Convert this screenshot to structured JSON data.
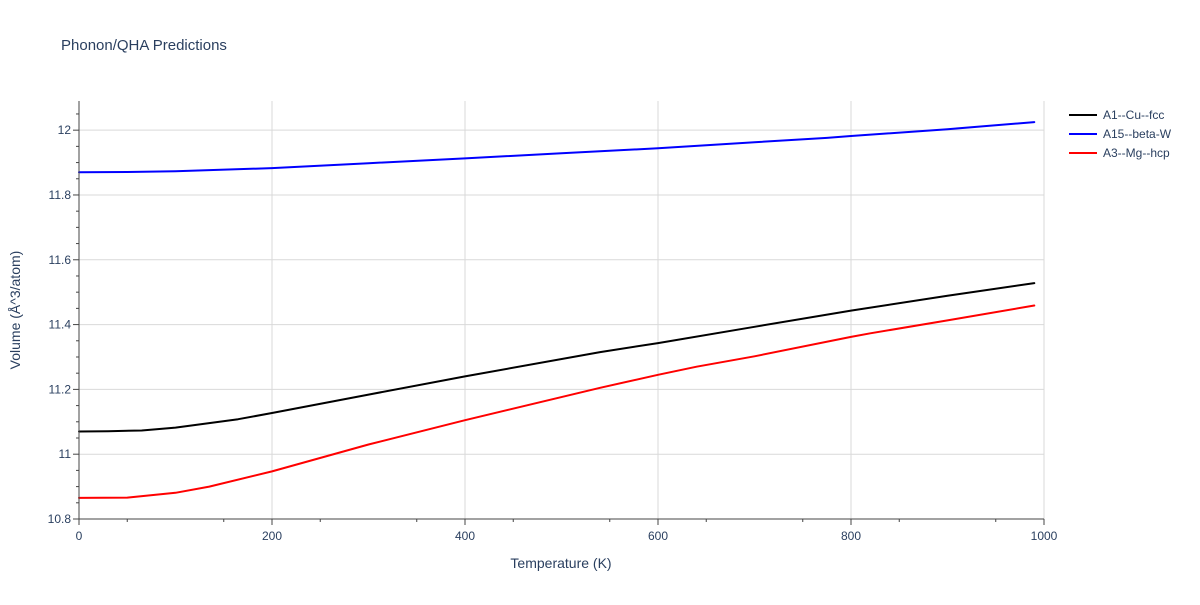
{
  "chart_data": {
    "type": "line",
    "title": "Phonon/QHA Predictions",
    "xlabel": "Temperature (K)",
    "ylabel": "Volume (Å^3/atom)",
    "xlim": [
      0,
      1000
    ],
    "ylim": [
      10.8,
      12.09
    ],
    "xticks": [
      0,
      200,
      400,
      600,
      800,
      1000
    ],
    "xtick_labels": [
      "0",
      "200",
      "400",
      "600",
      "800",
      "1000"
    ],
    "yticks": [
      10.8,
      11,
      11.2,
      11.4,
      11.6,
      11.8,
      12
    ],
    "ytick_labels": [
      "10.8",
      "11",
      "11.2",
      "11.4",
      "11.6",
      "11.8",
      "12"
    ],
    "grid": true,
    "legend_position": "right",
    "series": [
      {
        "name": "A1--Cu--fcc",
        "color": "#000000",
        "x": [
          0,
          30,
          65,
          100,
          165,
          200,
          300,
          400,
          540,
          600,
          700,
          800,
          900,
          990
        ],
        "y": [
          11.07,
          11.071,
          11.073,
          11.082,
          11.108,
          11.127,
          11.184,
          11.24,
          11.315,
          11.343,
          11.393,
          11.443,
          11.489,
          11.528
        ]
      },
      {
        "name": "A15--beta-W",
        "color": "#0000ff",
        "x": [
          0,
          50,
          100,
          200,
          300,
          400,
          500,
          600,
          700,
          775,
          800,
          900,
          990
        ],
        "y": [
          11.87,
          11.871,
          11.873,
          11.883,
          11.898,
          11.913,
          11.929,
          11.944,
          11.963,
          11.976,
          11.982,
          12.003,
          12.025
        ]
      },
      {
        "name": "A3--Mg--hcp",
        "color": "#ff0000",
        "x": [
          0,
          50,
          100,
          135,
          200,
          300,
          400,
          540,
          600,
          640,
          700,
          800,
          820,
          900,
          990
        ],
        "y": [
          10.865,
          10.866,
          10.881,
          10.9,
          10.947,
          11.03,
          11.105,
          11.205,
          11.245,
          11.27,
          11.302,
          11.362,
          11.373,
          11.413,
          11.459
        ]
      }
    ]
  }
}
